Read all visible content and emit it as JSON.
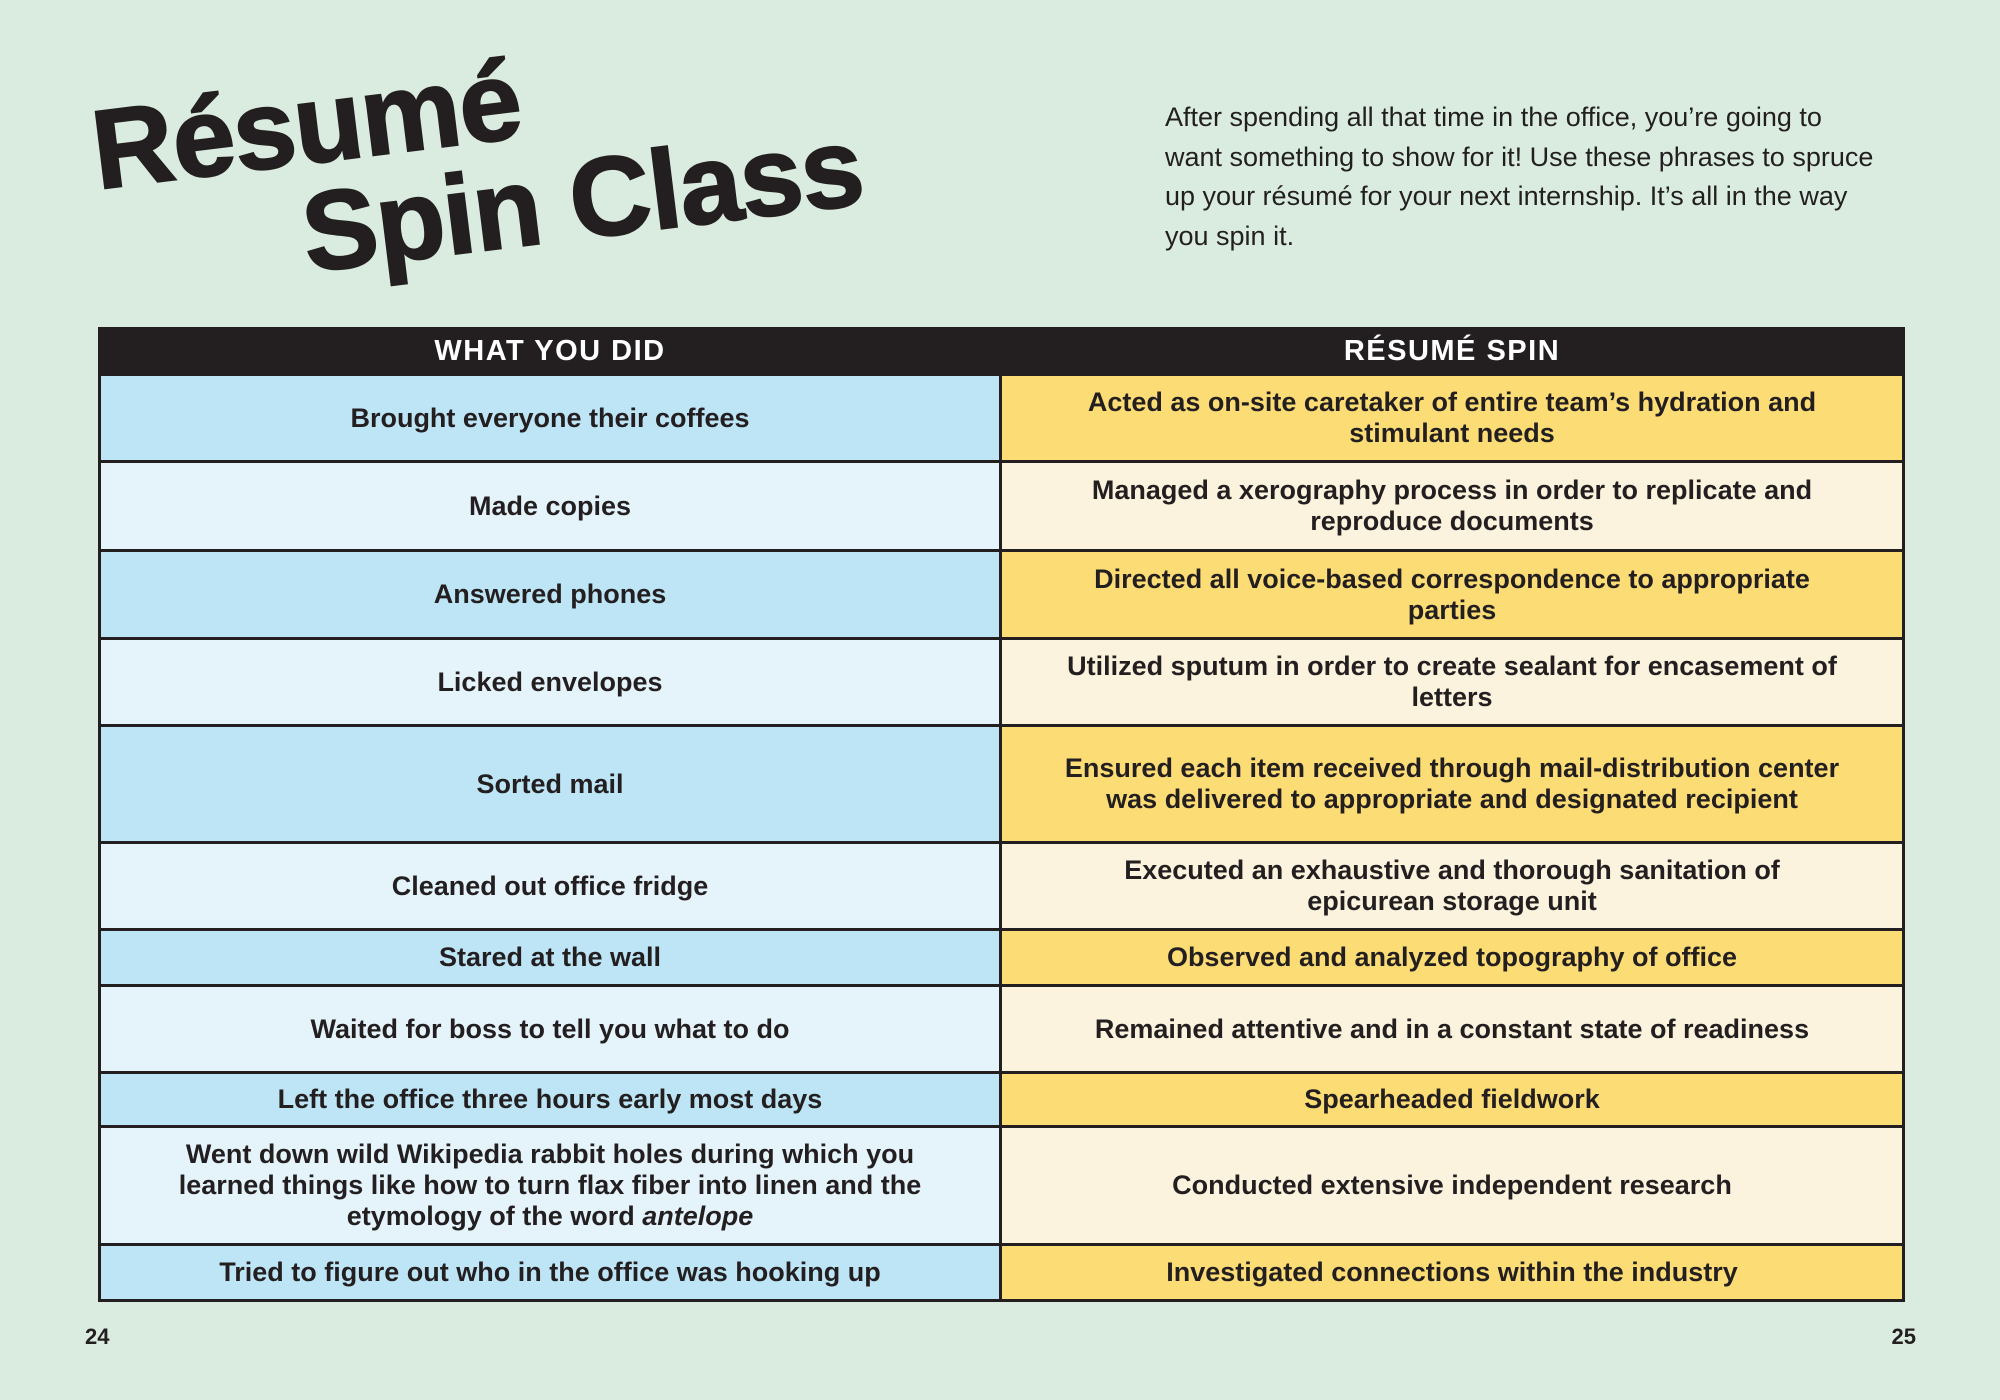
{
  "header": {
    "title_lines": [
      "Résumé",
      "Spin Class"
    ],
    "intro": "After spending all that time in the office, you’re going to want something to show for it! Use these phrases to spruce up your résumé for your next internship. It’s all in the way you spin it."
  },
  "table": {
    "columns": [
      "WHAT YOU DID",
      "RÉSUMÉ SPIN"
    ],
    "rows": [
      [
        "Brought everyone their coffees",
        "Acted as on-site caretaker of entire team’s hydration and stimulant needs"
      ],
      [
        "Made copies",
        "Managed a xerography process in order to replicate and reproduce documents"
      ],
      [
        "Answered phones",
        "Directed all voice-based correspondence to appropriate parties"
      ],
      [
        "Licked envelopes",
        "Utilized sputum in order to create sealant for encasement of letters"
      ],
      [
        "Sorted mail",
        "Ensured each item received through mail-distribution center was delivered to appropriate and designated recipient"
      ],
      [
        "Cleaned out office fridge",
        "Executed an exhaustive and thorough sanitation of epicurean storage unit"
      ],
      [
        "Stared at the wall",
        "Observed and analyzed topography of office"
      ],
      [
        "Waited for boss to tell you what to do",
        "Remained attentive and in a constant state of readiness"
      ],
      [
        "Left the office three hours early most days",
        "Spearheaded fieldwork"
      ],
      [
        [
          {
            "text": "Went down wild Wikipedia rabbit holes during which you learned things like how to turn flax fiber into linen and the etymology of the word "
          },
          {
            "text": "antelope",
            "style": "italic"
          }
        ],
        "Conducted extensive independent research"
      ],
      [
        "Tried to figure out who in the office was hooking up",
        "Investigated connections within the industry"
      ]
    ]
  },
  "footer": {
    "page_left": "24",
    "page_right": "25"
  }
}
